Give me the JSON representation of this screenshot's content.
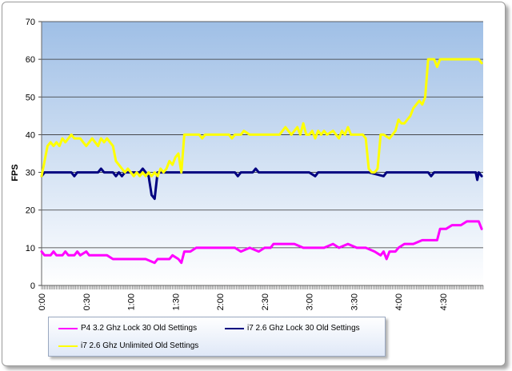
{
  "chart_data": {
    "type": "line",
    "title": "",
    "xlabel": "",
    "ylabel": "FPS",
    "ylim": [
      0,
      70
    ],
    "xlim": [
      0,
      297
    ],
    "x_unit": "seconds (m:ss)",
    "yticks": [
      0,
      10,
      20,
      30,
      40,
      50,
      60,
      70
    ],
    "xticks": [
      {
        "t": 0,
        "label": "0:00"
      },
      {
        "t": 30,
        "label": "0:30"
      },
      {
        "t": 60,
        "label": "1:00"
      },
      {
        "t": 90,
        "label": "1:30"
      },
      {
        "t": 120,
        "label": "2:00"
      },
      {
        "t": 150,
        "label": "2:30"
      },
      {
        "t": 180,
        "label": "3:00"
      },
      {
        "t": 210,
        "label": "3:30"
      },
      {
        "t": 240,
        "label": "4:00"
      },
      {
        "t": 270,
        "label": "4:30"
      }
    ],
    "grid": true,
    "legend_position": "bottom-left",
    "background_gradient": [
      "#9fbfe6",
      "#ffffff"
    ],
    "series": [
      {
        "name": "P4 3.2 Ghz Lock 30 Old Settings",
        "color": "#ff00ff",
        "points": [
          [
            0,
            9
          ],
          [
            2,
            8
          ],
          [
            6,
            8
          ],
          [
            8,
            9
          ],
          [
            10,
            8
          ],
          [
            14,
            8
          ],
          [
            16,
            9
          ],
          [
            18,
            8
          ],
          [
            22,
            8
          ],
          [
            24,
            9
          ],
          [
            26,
            8
          ],
          [
            30,
            9
          ],
          [
            32,
            8
          ],
          [
            40,
            8
          ],
          [
            44,
            8
          ],
          [
            48,
            7
          ],
          [
            56,
            7
          ],
          [
            60,
            7
          ],
          [
            70,
            7
          ],
          [
            76,
            6
          ],
          [
            78,
            7
          ],
          [
            86,
            7
          ],
          [
            88,
            8
          ],
          [
            92,
            7
          ],
          [
            94,
            6
          ],
          [
            96,
            9
          ],
          [
            100,
            9
          ],
          [
            104,
            10
          ],
          [
            110,
            10
          ],
          [
            120,
            10
          ],
          [
            130,
            10
          ],
          [
            134,
            9
          ],
          [
            140,
            10
          ],
          [
            146,
            9
          ],
          [
            150,
            10
          ],
          [
            154,
            10
          ],
          [
            156,
            11
          ],
          [
            160,
            11
          ],
          [
            170,
            11
          ],
          [
            176,
            10
          ],
          [
            180,
            10
          ],
          [
            190,
            10
          ],
          [
            196,
            11
          ],
          [
            200,
            10
          ],
          [
            206,
            11
          ],
          [
            212,
            10
          ],
          [
            218,
            10
          ],
          [
            224,
            9
          ],
          [
            228,
            8
          ],
          [
            230,
            9
          ],
          [
            232,
            7
          ],
          [
            234,
            9
          ],
          [
            238,
            9
          ],
          [
            240,
            10
          ],
          [
            244,
            11
          ],
          [
            250,
            11
          ],
          [
            256,
            12
          ],
          [
            262,
            12
          ],
          [
            266,
            12
          ],
          [
            268,
            15
          ],
          [
            272,
            15
          ],
          [
            276,
            16
          ],
          [
            282,
            16
          ],
          [
            286,
            17
          ],
          [
            292,
            17
          ],
          [
            294,
            17
          ],
          [
            296,
            15
          ]
        ]
      },
      {
        "name": "i7 2.6 Ghz Lock 30 Old Settings",
        "color": "#000080",
        "points": [
          [
            0,
            29
          ],
          [
            2,
            30
          ],
          [
            10,
            30
          ],
          [
            20,
            30
          ],
          [
            22,
            29
          ],
          [
            24,
            30
          ],
          [
            38,
            30
          ],
          [
            40,
            31
          ],
          [
            42,
            30
          ],
          [
            48,
            30
          ],
          [
            50,
            29
          ],
          [
            52,
            30
          ],
          [
            54,
            29
          ],
          [
            56,
            30
          ],
          [
            62,
            30
          ],
          [
            66,
            30
          ],
          [
            68,
            31
          ],
          [
            70,
            30
          ],
          [
            72,
            29
          ],
          [
            74,
            24
          ],
          [
            76,
            23
          ],
          [
            78,
            30
          ],
          [
            90,
            30
          ],
          [
            100,
            30
          ],
          [
            110,
            30
          ],
          [
            120,
            30
          ],
          [
            130,
            30
          ],
          [
            132,
            29
          ],
          [
            134,
            30
          ],
          [
            142,
            30
          ],
          [
            144,
            31
          ],
          [
            146,
            30
          ],
          [
            160,
            30
          ],
          [
            170,
            30
          ],
          [
            180,
            30
          ],
          [
            184,
            29
          ],
          [
            186,
            30
          ],
          [
            196,
            30
          ],
          [
            200,
            30
          ],
          [
            220,
            30
          ],
          [
            230,
            29
          ],
          [
            232,
            30
          ],
          [
            250,
            30
          ],
          [
            260,
            30
          ],
          [
            262,
            29
          ],
          [
            264,
            30
          ],
          [
            280,
            30
          ],
          [
            292,
            30
          ],
          [
            293,
            28
          ],
          [
            294,
            30
          ],
          [
            296,
            29
          ]
        ]
      },
      {
        "name": "i7 2.6 Ghz Unlimited Old Settings",
        "color": "#ffff00",
        "points": [
          [
            0,
            29
          ],
          [
            2,
            33
          ],
          [
            4,
            37
          ],
          [
            6,
            38
          ],
          [
            8,
            37
          ],
          [
            10,
            38
          ],
          [
            12,
            37
          ],
          [
            14,
            39
          ],
          [
            16,
            38
          ],
          [
            18,
            39
          ],
          [
            20,
            40
          ],
          [
            22,
            39
          ],
          [
            26,
            39
          ],
          [
            28,
            38
          ],
          [
            30,
            37
          ],
          [
            32,
            38
          ],
          [
            34,
            39
          ],
          [
            36,
            38
          ],
          [
            38,
            37
          ],
          [
            40,
            39
          ],
          [
            42,
            38
          ],
          [
            44,
            39
          ],
          [
            46,
            38
          ],
          [
            48,
            37
          ],
          [
            50,
            33
          ],
          [
            52,
            32
          ],
          [
            54,
            31
          ],
          [
            56,
            30
          ],
          [
            58,
            31
          ],
          [
            60,
            30
          ],
          [
            62,
            29
          ],
          [
            64,
            30
          ],
          [
            66,
            29
          ],
          [
            68,
            30
          ],
          [
            70,
            29
          ],
          [
            72,
            30
          ],
          [
            74,
            29
          ],
          [
            76,
            30
          ],
          [
            78,
            29
          ],
          [
            80,
            31
          ],
          [
            82,
            30
          ],
          [
            84,
            31
          ],
          [
            86,
            33
          ],
          [
            88,
            32
          ],
          [
            90,
            34
          ],
          [
            92,
            35
          ],
          [
            94,
            30
          ],
          [
            96,
            40
          ],
          [
            100,
            40
          ],
          [
            106,
            40
          ],
          [
            108,
            39
          ],
          [
            110,
            40
          ],
          [
            120,
            40
          ],
          [
            126,
            40
          ],
          [
            128,
            39
          ],
          [
            130,
            40
          ],
          [
            134,
            40
          ],
          [
            136,
            41
          ],
          [
            140,
            40
          ],
          [
            150,
            40
          ],
          [
            160,
            40
          ],
          [
            162,
            41
          ],
          [
            164,
            42
          ],
          [
            166,
            41
          ],
          [
            168,
            40
          ],
          [
            170,
            41
          ],
          [
            172,
            42
          ],
          [
            174,
            40
          ],
          [
            176,
            43
          ],
          [
            178,
            40
          ],
          [
            180,
            40
          ],
          [
            182,
            41
          ],
          [
            184,
            39
          ],
          [
            186,
            41
          ],
          [
            188,
            40
          ],
          [
            190,
            41
          ],
          [
            192,
            40
          ],
          [
            196,
            41
          ],
          [
            200,
            39
          ],
          [
            202,
            41
          ],
          [
            204,
            40
          ],
          [
            206,
            42
          ],
          [
            208,
            40
          ],
          [
            210,
            40
          ],
          [
            216,
            40
          ],
          [
            218,
            39
          ],
          [
            220,
            31
          ],
          [
            222,
            30
          ],
          [
            224,
            30
          ],
          [
            226,
            31
          ],
          [
            228,
            40
          ],
          [
            230,
            40
          ],
          [
            234,
            39
          ],
          [
            236,
            40
          ],
          [
            238,
            41
          ],
          [
            240,
            44
          ],
          [
            242,
            43
          ],
          [
            244,
            43
          ],
          [
            246,
            44
          ],
          [
            248,
            45
          ],
          [
            250,
            47
          ],
          [
            252,
            48
          ],
          [
            254,
            49
          ],
          [
            256,
            48
          ],
          [
            258,
            50
          ],
          [
            260,
            60
          ],
          [
            264,
            60
          ],
          [
            266,
            58
          ],
          [
            268,
            60
          ],
          [
            272,
            60
          ],
          [
            280,
            60
          ],
          [
            286,
            60
          ],
          [
            290,
            60
          ],
          [
            292,
            60
          ],
          [
            294,
            60
          ],
          [
            296,
            59
          ]
        ]
      }
    ]
  },
  "legend": {
    "items": [
      "P4 3.2 Ghz Lock 30 Old Settings",
      "i7 2.6 Ghz Lock 30 Old Settings",
      "i7 2.6 Ghz Unlimited Old Settings"
    ]
  }
}
